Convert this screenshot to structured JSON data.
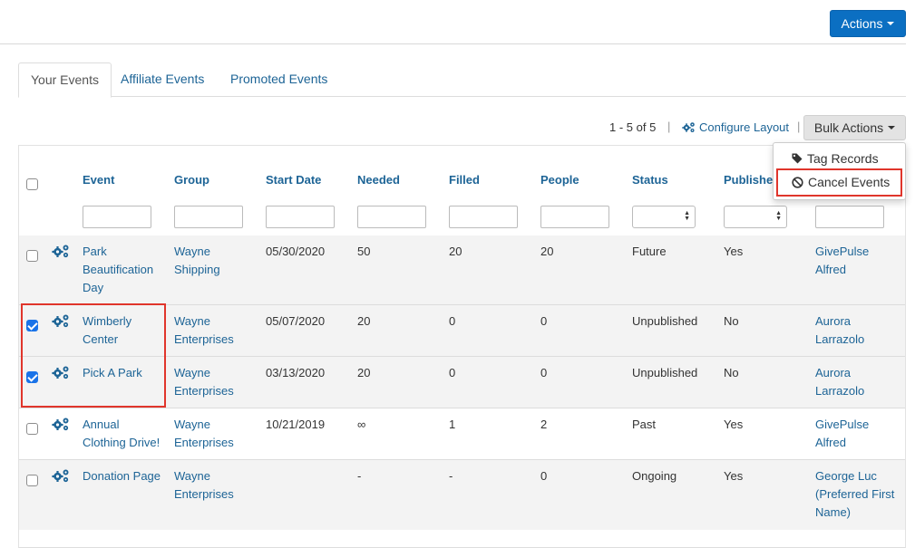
{
  "header": {
    "actions_label": "Actions"
  },
  "tabs": [
    {
      "label": "Your Events",
      "active": true
    },
    {
      "label": "Affiliate Events",
      "active": false
    },
    {
      "label": "Promoted Events",
      "active": false
    }
  ],
  "toolbar": {
    "pager": "1 - 5 of 5",
    "separator": "|",
    "configure_label": "Configure Layout",
    "bulk_label": "Bulk Actions"
  },
  "bulk_menu": {
    "items": [
      {
        "label": "Tag Records",
        "icon": "tag-icon"
      },
      {
        "label": "Cancel Events",
        "icon": "ban-icon"
      }
    ]
  },
  "table": {
    "columns": [
      "Event",
      "Group",
      "Start Date",
      "Needed",
      "Filled",
      "People",
      "Status",
      "Published",
      ""
    ],
    "rows": [
      {
        "checked": false,
        "event": [
          "Park",
          "Beautification",
          "Day"
        ],
        "group": [
          "Wayne",
          "Shipping"
        ],
        "start": "05/30/2020",
        "needed": "50",
        "filled": "20",
        "people": "20",
        "status": "Future",
        "published": "Yes",
        "owner": [
          "GivePulse",
          "Alfred"
        ]
      },
      {
        "checked": true,
        "event": [
          "Wimberly",
          "Center"
        ],
        "group": [
          "Wayne",
          "Enterprises"
        ],
        "start": "05/07/2020",
        "needed": "20",
        "filled": "0",
        "people": "0",
        "status": "Unpublished",
        "published": "No",
        "owner": [
          "Aurora",
          "Larrazolo"
        ]
      },
      {
        "checked": true,
        "event": [
          "Pick A Park"
        ],
        "group": [
          "Wayne",
          "Enterprises"
        ],
        "start": "03/13/2020",
        "needed": "20",
        "filled": "0",
        "people": "0",
        "status": "Unpublished",
        "published": "No",
        "owner": [
          "Aurora",
          "Larrazolo"
        ]
      },
      {
        "checked": false,
        "event": [
          "Annual",
          "Clothing Drive!"
        ],
        "group": [
          "Wayne",
          "Enterprises"
        ],
        "start": "10/21/2019",
        "needed": "∞",
        "filled": "1",
        "people": "2",
        "status": "Past",
        "published": "Yes",
        "owner": [
          "GivePulse",
          "Alfred"
        ]
      },
      {
        "checked": false,
        "event": [
          "Donation Page"
        ],
        "group": [
          "Wayne",
          "Enterprises"
        ],
        "start": "",
        "needed": "-",
        "filled": "-",
        "people": "0",
        "status": "Ongoing",
        "published": "Yes",
        "owner": [
          "George Luc",
          "(Preferred First",
          "Name)"
        ]
      }
    ]
  },
  "colors": {
    "link": "#1d6496",
    "primary_button": "#0b6fc2",
    "highlight": "#e0352b",
    "checkbox": "#1a73e8"
  }
}
